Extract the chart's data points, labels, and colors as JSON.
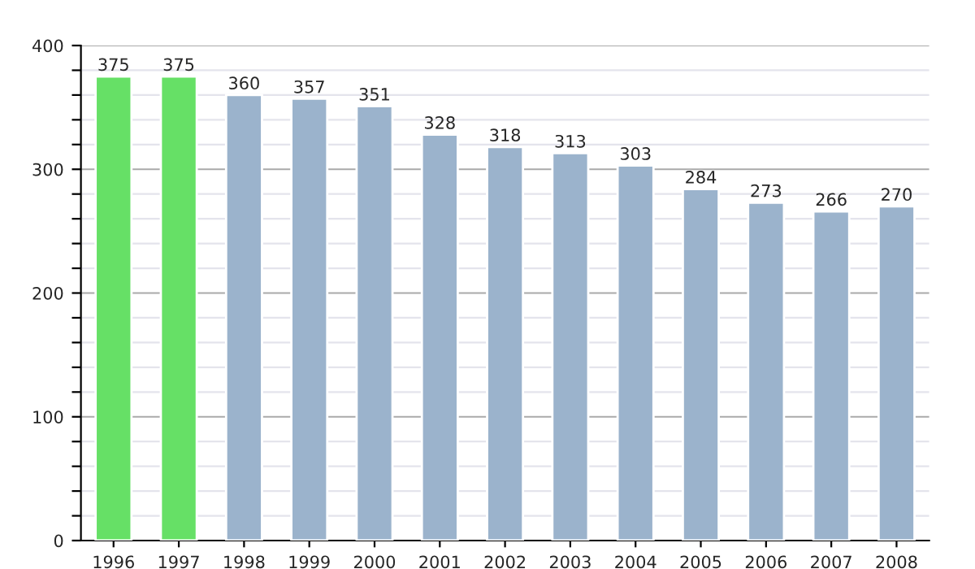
{
  "chart_data": {
    "type": "bar",
    "categories": [
      "1996",
      "1997",
      "1998",
      "1999",
      "2000",
      "2001",
      "2002",
      "2003",
      "2004",
      "2005",
      "2006",
      "2007",
      "2008"
    ],
    "values": [
      375,
      375,
      360,
      357,
      351,
      328,
      318,
      313,
      303,
      284,
      273,
      266,
      270
    ],
    "colors": [
      "#66e066",
      "#66e066",
      "#9bb3cc",
      "#9bb3cc",
      "#9bb3cc",
      "#9bb3cc",
      "#9bb3cc",
      "#9bb3cc",
      "#9bb3cc",
      "#9bb3cc",
      "#9bb3cc",
      "#9bb3cc",
      "#9bb3cc"
    ],
    "ylim": [
      0,
      400
    ],
    "yticks": [
      0,
      {
        "value": 20,
        "label": null
      },
      {
        "value": 40,
        "label": null
      },
      {
        "value": 60,
        "label": null
      },
      {
        "value": 80,
        "label": null
      },
      100,
      {
        "value": 120,
        "label": null
      },
      {
        "value": 140,
        "label": null
      },
      {
        "value": 160,
        "label": null
      },
      {
        "value": 180,
        "label": null
      },
      200,
      {
        "value": 220,
        "label": null
      },
      {
        "value": 240,
        "label": null
      },
      {
        "value": 260,
        "label": null
      },
      {
        "value": 280,
        "label": null
      },
      300,
      {
        "value": 320,
        "label": null
      },
      {
        "value": 340,
        "label": null
      },
      {
        "value": 360,
        "label": null
      },
      {
        "value": 380,
        "label": null
      },
      400
    ],
    "grid": "y",
    "data_labels": true
  }
}
